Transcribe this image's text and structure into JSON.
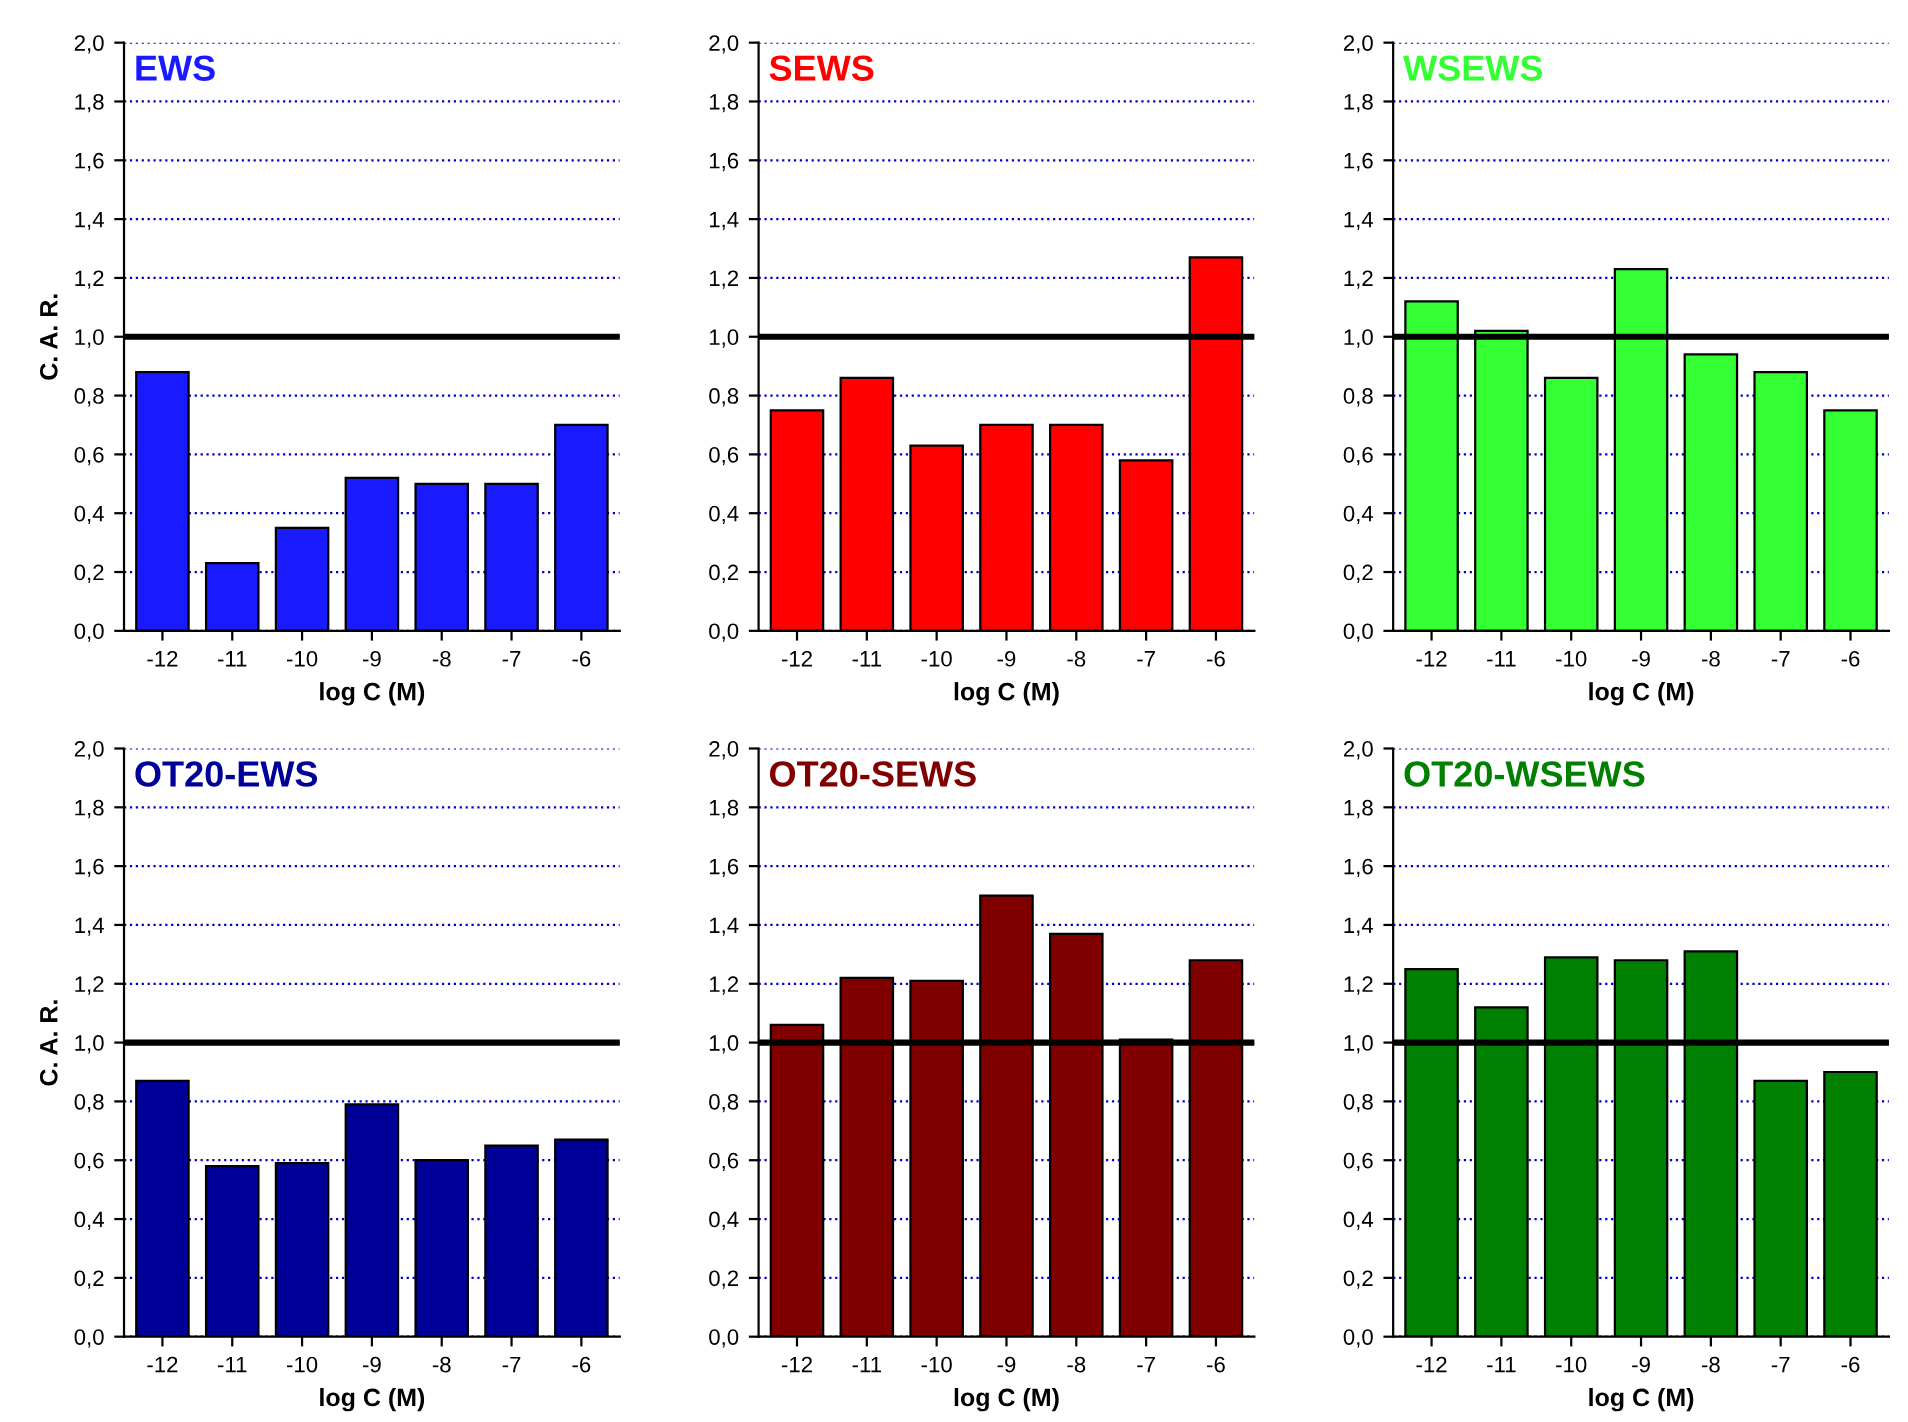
{
  "chart_data": [
    {
      "type": "bar",
      "title": "EWS",
      "ylabel": "C. A. R.",
      "xlabel": "log C (M)",
      "categories": [
        "-12",
        "-11",
        "-10",
        "-9",
        "-8",
        "-7",
        "-6"
      ],
      "series": [
        {
          "color": "#1a1aff",
          "values": [
            0.88,
            0.23,
            0.35,
            0.52,
            0.5,
            0.5,
            0.7
          ]
        }
      ],
      "ylim": [
        0,
        2
      ],
      "yticks": [
        {
          "value": 0,
          "label": "0,0"
        },
        {
          "value": 0.2,
          "label": "0,2"
        },
        {
          "value": 0.4,
          "label": "0,4"
        },
        {
          "value": 0.6,
          "label": "0,6"
        },
        {
          "value": 0.8,
          "label": "0,8"
        },
        {
          "value": 1.0,
          "label": "1,0"
        },
        {
          "value": 1.2,
          "label": "1,2"
        },
        {
          "value": 1.4,
          "label": "1,4"
        },
        {
          "value": 1.6,
          "label": "1,6"
        },
        {
          "value": 1.8,
          "label": "1,8"
        },
        {
          "value": 2.0,
          "label": "2,0"
        }
      ],
      "grid": "y",
      "ref_lines": [
        {
          "axis": "y",
          "value": 1.0,
          "color": "#000000",
          "line_style": "solid"
        }
      ]
    },
    {
      "type": "bar",
      "title": "SEWS",
      "xlabel": "log C (M)",
      "categories": [
        "-12",
        "-11",
        "-10",
        "-9",
        "-8",
        "-7",
        "-6"
      ],
      "series": [
        {
          "color": "#ff0000",
          "values": [
            0.75,
            0.86,
            0.63,
            0.7,
            0.7,
            0.58,
            1.27
          ]
        }
      ],
      "ylim": [
        0,
        2
      ],
      "yticks": [
        {
          "value": 0,
          "label": "0,0"
        },
        {
          "value": 0.2,
          "label": "0,2"
        },
        {
          "value": 0.4,
          "label": "0,4"
        },
        {
          "value": 0.6,
          "label": "0,6"
        },
        {
          "value": 0.8,
          "label": "0,8"
        },
        {
          "value": 1.0,
          "label": "1,0"
        },
        {
          "value": 1.2,
          "label": "1,2"
        },
        {
          "value": 1.4,
          "label": "1,4"
        },
        {
          "value": 1.6,
          "label": "1,6"
        },
        {
          "value": 1.8,
          "label": "1,8"
        },
        {
          "value": 2.0,
          "label": "2,0"
        }
      ],
      "grid": "y",
      "ref_lines": [
        {
          "axis": "y",
          "value": 1.0,
          "color": "#000000",
          "line_style": "solid"
        }
      ]
    },
    {
      "type": "bar",
      "title": "WSEWS",
      "xlabel": "log C (M)",
      "categories": [
        "-12",
        "-11",
        "-10",
        "-9",
        "-8",
        "-7",
        "-6"
      ],
      "series": [
        {
          "color": "#33ff33",
          "values": [
            1.12,
            1.02,
            0.86,
            1.23,
            0.94,
            0.88,
            0.75
          ]
        }
      ],
      "ylim": [
        0,
        2
      ],
      "yticks": [
        {
          "value": 0,
          "label": "0,0"
        },
        {
          "value": 0.2,
          "label": "0,2"
        },
        {
          "value": 0.4,
          "label": "0,4"
        },
        {
          "value": 0.6,
          "label": "0,6"
        },
        {
          "value": 0.8,
          "label": "0,8"
        },
        {
          "value": 1.0,
          "label": "1,0"
        },
        {
          "value": 1.2,
          "label": "1,2"
        },
        {
          "value": 1.4,
          "label": "1,4"
        },
        {
          "value": 1.6,
          "label": "1,6"
        },
        {
          "value": 1.8,
          "label": "1,8"
        },
        {
          "value": 2.0,
          "label": "2,0"
        }
      ],
      "grid": "y",
      "ref_lines": [
        {
          "axis": "y",
          "value": 1.0,
          "color": "#000000",
          "line_style": "solid"
        }
      ]
    },
    {
      "type": "bar",
      "title": "OT20-EWS",
      "ylabel": "C. A. R.",
      "xlabel": "log C (M)",
      "categories": [
        "-12",
        "-11",
        "-10",
        "-9",
        "-8",
        "-7",
        "-6"
      ],
      "series": [
        {
          "color": "#000099",
          "values": [
            0.87,
            0.58,
            0.59,
            0.79,
            0.6,
            0.65,
            0.67
          ]
        }
      ],
      "ylim": [
        0,
        2
      ],
      "yticks": [
        {
          "value": 0,
          "label": "0,0"
        },
        {
          "value": 0.2,
          "label": "0,2"
        },
        {
          "value": 0.4,
          "label": "0,4"
        },
        {
          "value": 0.6,
          "label": "0,6"
        },
        {
          "value": 0.8,
          "label": "0,8"
        },
        {
          "value": 1.0,
          "label": "1,0"
        },
        {
          "value": 1.2,
          "label": "1,2"
        },
        {
          "value": 1.4,
          "label": "1,4"
        },
        {
          "value": 1.6,
          "label": "1,6"
        },
        {
          "value": 1.8,
          "label": "1,8"
        },
        {
          "value": 2.0,
          "label": "2,0"
        }
      ],
      "grid": "y",
      "ref_lines": [
        {
          "axis": "y",
          "value": 1.0,
          "color": "#000000",
          "line_style": "solid"
        }
      ]
    },
    {
      "type": "bar",
      "title": "OT20-SEWS",
      "xlabel": "log C (M)",
      "categories": [
        "-12",
        "-11",
        "-10",
        "-9",
        "-8",
        "-7",
        "-6"
      ],
      "series": [
        {
          "color": "#800000",
          "values": [
            1.06,
            1.22,
            1.21,
            1.5,
            1.37,
            1.01,
            1.28
          ]
        }
      ],
      "ylim": [
        0,
        2
      ],
      "yticks": [
        {
          "value": 0,
          "label": "0,0"
        },
        {
          "value": 0.2,
          "label": "0,2"
        },
        {
          "value": 0.4,
          "label": "0,4"
        },
        {
          "value": 0.6,
          "label": "0,6"
        },
        {
          "value": 0.8,
          "label": "0,8"
        },
        {
          "value": 1.0,
          "label": "1,0"
        },
        {
          "value": 1.2,
          "label": "1,2"
        },
        {
          "value": 1.4,
          "label": "1,4"
        },
        {
          "value": 1.6,
          "label": "1,6"
        },
        {
          "value": 1.8,
          "label": "1,8"
        },
        {
          "value": 2.0,
          "label": "2,0"
        }
      ],
      "grid": "y",
      "ref_lines": [
        {
          "axis": "y",
          "value": 1.0,
          "color": "#000000",
          "line_style": "solid"
        }
      ]
    },
    {
      "type": "bar",
      "title": "OT20-WSEWS",
      "xlabel": "log C (M)",
      "categories": [
        "-12",
        "-11",
        "-10",
        "-9",
        "-8",
        "-7",
        "-6"
      ],
      "series": [
        {
          "color": "#008000",
          "values": [
            1.25,
            1.12,
            1.29,
            1.28,
            1.31,
            0.87,
            0.9
          ]
        }
      ],
      "ylim": [
        0,
        2
      ],
      "yticks": [
        {
          "value": 0,
          "label": "0,0"
        },
        {
          "value": 0.2,
          "label": "0,2"
        },
        {
          "value": 0.4,
          "label": "0,4"
        },
        {
          "value": 0.6,
          "label": "0,6"
        },
        {
          "value": 0.8,
          "label": "0,8"
        },
        {
          "value": 1.0,
          "label": "1,0"
        },
        {
          "value": 1.2,
          "label": "1,2"
        },
        {
          "value": 1.4,
          "label": "1,4"
        },
        {
          "value": 1.6,
          "label": "1,6"
        },
        {
          "value": 1.8,
          "label": "1,8"
        },
        {
          "value": 2.0,
          "label": "2,0"
        }
      ],
      "grid": "y",
      "ref_lines": [
        {
          "axis": "y",
          "value": 1.0,
          "color": "#000000",
          "line_style": "solid"
        }
      ]
    }
  ]
}
